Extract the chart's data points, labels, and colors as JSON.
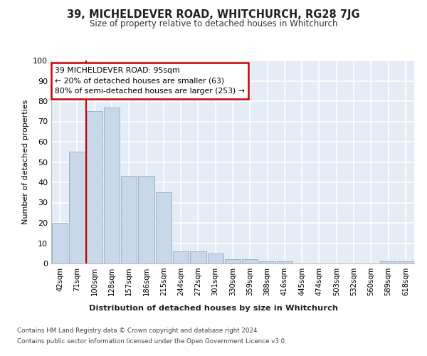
{
  "title": "39, MICHELDEVER ROAD, WHITCHURCH, RG28 7JG",
  "subtitle": "Size of property relative to detached houses in Whitchurch",
  "xlabel_bottom": "Distribution of detached houses by size in Whitchurch",
  "ylabel": "Number of detached properties",
  "bin_labels": [
    "42sqm",
    "71sqm",
    "100sqm",
    "128sqm",
    "157sqm",
    "186sqm",
    "215sqm",
    "244sqm",
    "272sqm",
    "301sqm",
    "330sqm",
    "359sqm",
    "388sqm",
    "416sqm",
    "445sqm",
    "474sqm",
    "503sqm",
    "532sqm",
    "560sqm",
    "589sqm",
    "618sqm"
  ],
  "bar_heights": [
    20,
    55,
    75,
    77,
    43,
    43,
    35,
    6,
    6,
    5,
    2,
    2,
    1,
    1,
    0,
    0,
    0,
    0,
    0,
    1,
    1
  ],
  "bar_color": "#c8d8e8",
  "bar_edge_color": "#8ab0cc",
  "background_color": "#e6ecf5",
  "grid_color": "#ffffff",
  "annotation_text": "39 MICHELDEVER ROAD: 95sqm\n← 20% of detached houses are smaller (63)\n80% of semi-detached houses are larger (253) →",
  "annotation_box_color": "#ffffff",
  "annotation_border_color": "#cc0000",
  "vline_color": "#cc0000",
  "vline_x": 1.5,
  "ylim": [
    0,
    100
  ],
  "yticks": [
    0,
    10,
    20,
    30,
    40,
    50,
    60,
    70,
    80,
    90,
    100
  ],
  "footer_line1": "Contains HM Land Registry data © Crown copyright and database right 2024.",
  "footer_line2": "Contains public sector information licensed under the Open Government Licence v3.0."
}
